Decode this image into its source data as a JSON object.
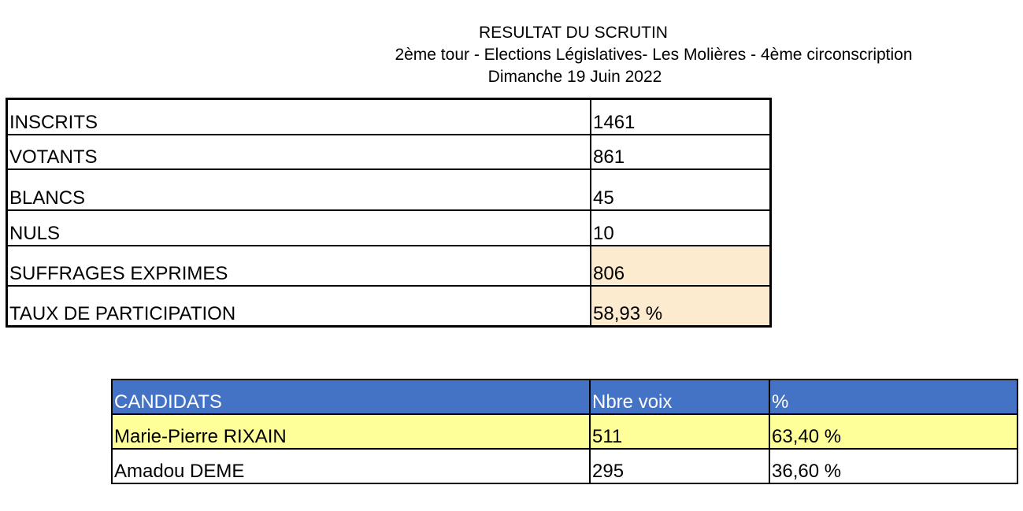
{
  "header": {
    "title": "RESULTAT DU SCRUTIN",
    "subtitle": "2ème tour - Elections Législatives- Les Molières - 4ème circonscription",
    "date": "Dimanche 19 Juin 2022"
  },
  "stats": [
    {
      "label": "INSCRITS",
      "value": "1461"
    },
    {
      "label": "VOTANTS",
      "value": "861"
    },
    {
      "label": "BLANCS",
      "value": "45"
    },
    {
      "label": "NULS",
      "value": "10"
    },
    {
      "label": "SUFFRAGES EXPRIMES",
      "value": "806"
    },
    {
      "label": "TAUX DE PARTICIPATION",
      "value": "58,93 %"
    }
  ],
  "candidates": {
    "headers": [
      "CANDIDATS",
      "Nbre voix",
      "%"
    ],
    "rows": [
      {
        "name": "Marie-Pierre RIXAIN",
        "votes": "511",
        "percent": "63,40 %"
      },
      {
        "name": "Amadou DEME",
        "votes": "295",
        "percent": "36,60 %"
      }
    ]
  },
  "colors": {
    "header_blue": "#4472C4",
    "winner_yellow": "#FFFF99",
    "highlight_peach": "#FDEBD0"
  }
}
